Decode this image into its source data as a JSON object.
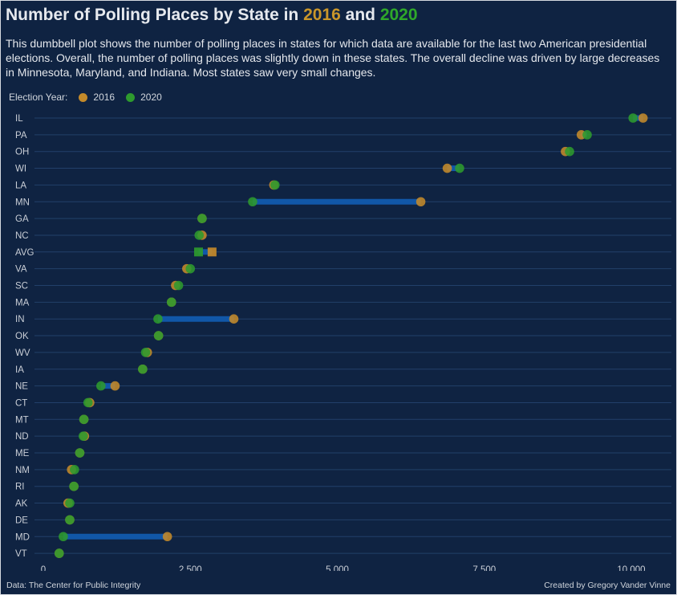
{
  "title": {
    "prefix": "Number of Polling Places by State in ",
    "year_a": "2016",
    "joiner": " and ",
    "year_b": "2020"
  },
  "subtitle": "This dumbbell plot shows the number  of polling places in states for which data are available for the last two American presidential elections. Overall, the number of polling places was slightly down in these states. The overall decline was driven by large decreases in Minnesota, Maryland, and Indiana. Most states saw very small changes.",
  "legend": {
    "title": "Election Year:",
    "items": [
      "2016",
      "2020"
    ]
  },
  "colors": {
    "y2016": "#c48a2a",
    "y2020": "#2e9a2e",
    "bar": "#1157a8",
    "background": "#0f2342",
    "grid": "#22406a"
  },
  "caption_left": "Data: The Center for Public Integrity",
  "caption_right": "Created by Gregory Vander Vinne",
  "chart_data": {
    "type": "dumbbell",
    "xlim": [
      0,
      10500
    ],
    "x_ticks": [
      0,
      2500,
      5000,
      7500,
      10000
    ],
    "x_tick_labels": [
      "0",
      "2,500",
      "5,000",
      "7,500",
      "10,000"
    ],
    "series": [
      {
        "name": "2016"
      },
      {
        "name": "2020"
      }
    ],
    "rows": [
      {
        "label": "IL",
        "v2016": 10200,
        "v2020": 10030
      },
      {
        "label": "PA",
        "v2016": 9150,
        "v2020": 9250
      },
      {
        "label": "OH",
        "v2016": 8880,
        "v2020": 8950
      },
      {
        "label": "WI",
        "v2016": 6870,
        "v2020": 7080
      },
      {
        "label": "LA",
        "v2016": 3920,
        "v2020": 3940
      },
      {
        "label": "MN",
        "v2016": 6420,
        "v2020": 3560
      },
      {
        "label": "GA",
        "v2016": 2700,
        "v2020": 2700
      },
      {
        "label": "NC",
        "v2016": 2700,
        "v2020": 2650
      },
      {
        "label": "AVG",
        "v2016": 2870,
        "v2020": 2640,
        "marker": "square"
      },
      {
        "label": "VA",
        "v2016": 2440,
        "v2020": 2500
      },
      {
        "label": "SC",
        "v2016": 2250,
        "v2020": 2300
      },
      {
        "label": "MA",
        "v2016": 2180,
        "v2020": 2180
      },
      {
        "label": "IN",
        "v2016": 3240,
        "v2020": 1950
      },
      {
        "label": "OK",
        "v2016": 1960,
        "v2020": 1960
      },
      {
        "label": "WV",
        "v2016": 1770,
        "v2020": 1740
      },
      {
        "label": "IA",
        "v2016": 1690,
        "v2020": 1690
      },
      {
        "label": "NE",
        "v2016": 1220,
        "v2020": 980
      },
      {
        "label": "CT",
        "v2016": 790,
        "v2020": 760
      },
      {
        "label": "MT",
        "v2016": 690,
        "v2020": 690
      },
      {
        "label": "ND",
        "v2016": 700,
        "v2020": 680
      },
      {
        "label": "ME",
        "v2016": 620,
        "v2020": 620
      },
      {
        "label": "NM",
        "v2016": 480,
        "v2020": 530
      },
      {
        "label": "RI",
        "v2016": 520,
        "v2020": 520
      },
      {
        "label": "AK",
        "v2016": 420,
        "v2020": 450
      },
      {
        "label": "DE",
        "v2016": 450,
        "v2020": 450
      },
      {
        "label": "MD",
        "v2016": 2110,
        "v2020": 340
      },
      {
        "label": "VT",
        "v2016": 270,
        "v2020": 270
      }
    ]
  }
}
